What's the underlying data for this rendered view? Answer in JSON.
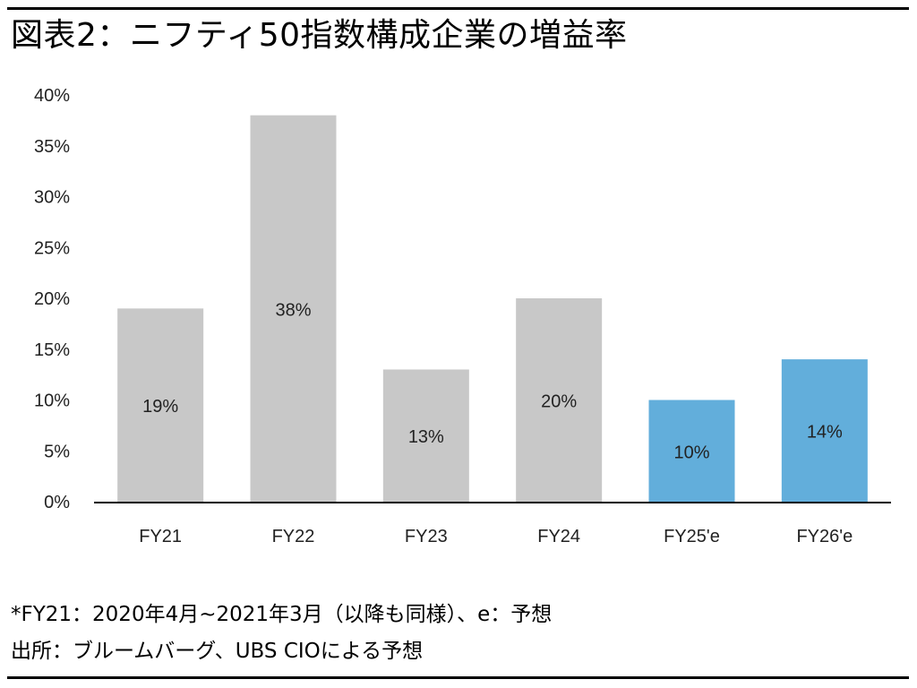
{
  "title": "図表2：ニフティ50指数構成企業の増益率",
  "chart_data": {
    "type": "bar",
    "categories": [
      "FY21",
      "FY22",
      "FY23",
      "FY24",
      "FY25'e",
      "FY26'e"
    ],
    "values": [
      19,
      38,
      13,
      20,
      10,
      14
    ],
    "value_labels": [
      "19%",
      "38%",
      "13%",
      "20%",
      "10%",
      "14%"
    ],
    "is_forecast": [
      false,
      false,
      false,
      false,
      true,
      true
    ],
    "yticks": [
      "0%",
      "5%",
      "10%",
      "15%",
      "20%",
      "25%",
      "30%",
      "35%",
      "40%"
    ],
    "ylim": [
      0,
      40
    ],
    "grid": false,
    "colors": {
      "actual": "#c8c8c8",
      "forecast": "#62aedb",
      "axis": "#000000",
      "text": "#222222"
    }
  },
  "notes": {
    "line1": "*FY21：2020年4月~2021年3月（以降も同様）、e：予想",
    "line2": "出所：ブルームバーグ、UBS CIOによる予想"
  }
}
